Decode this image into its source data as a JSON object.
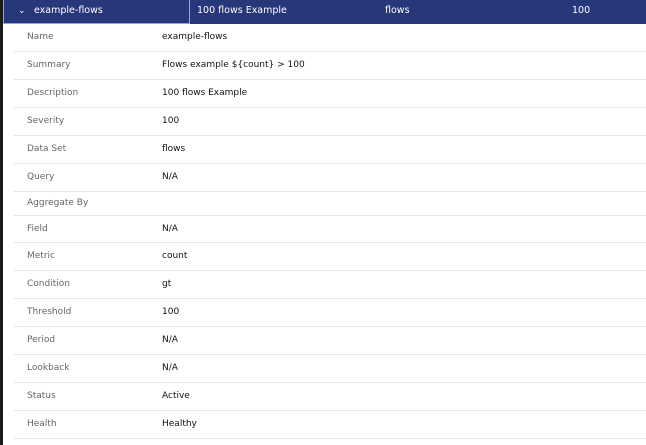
{
  "header": {
    "name": "example-flows",
    "description": "100 flows Example",
    "data_set": "flows",
    "severity": "100",
    "expand_icon": "chevron-down-icon"
  },
  "details": [
    {
      "label": "Name",
      "value": "example-flows"
    },
    {
      "label": "Summary",
      "value": "Flows example ${count} > 100"
    },
    {
      "label": "Description",
      "value": "100 flows Example"
    },
    {
      "label": "Severity",
      "value": "100"
    },
    {
      "label": "Data Set",
      "value": "flows"
    },
    {
      "label": "Query",
      "value": "N/A"
    },
    {
      "label": "Aggregate By",
      "value": ""
    },
    {
      "label": "Field",
      "value": "N/A"
    },
    {
      "label": "Metric",
      "value": "count"
    },
    {
      "label": "Condition",
      "value": "gt"
    },
    {
      "label": "Threshold",
      "value": "100"
    },
    {
      "label": "Period",
      "value": "N/A"
    },
    {
      "label": "Lookback",
      "value": "N/A"
    },
    {
      "label": "Status",
      "value": "Active"
    },
    {
      "label": "Health",
      "value": "Healthy"
    }
  ]
}
